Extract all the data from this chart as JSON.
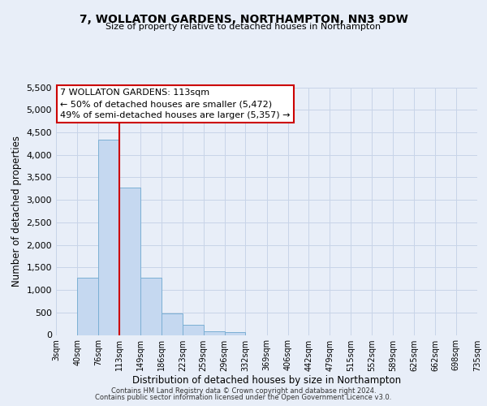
{
  "title": "7, WOLLATON GARDENS, NORTHAMPTON, NN3 9DW",
  "subtitle": "Size of property relative to detached houses in Northampton",
  "xlabel": "Distribution of detached houses by size in Northampton",
  "ylabel": "Number of detached properties",
  "bin_labels": [
    "3sqm",
    "40sqm",
    "76sqm",
    "113sqm",
    "149sqm",
    "186sqm",
    "223sqm",
    "259sqm",
    "296sqm",
    "332sqm",
    "369sqm",
    "406sqm",
    "442sqm",
    "479sqm",
    "515sqm",
    "552sqm",
    "589sqm",
    "625sqm",
    "662sqm",
    "698sqm",
    "735sqm"
  ],
  "bar_values": [
    0,
    1270,
    4330,
    3280,
    1270,
    480,
    230,
    90,
    60,
    0,
    0,
    0,
    0,
    0,
    0,
    0,
    0,
    0,
    0,
    0
  ],
  "bar_color": "#c5d8f0",
  "bar_edge_color": "#7bafd4",
  "vline_color": "#cc0000",
  "annotation_title": "7 WOLLATON GARDENS: 113sqm",
  "annotation_line1": "← 50% of detached houses are smaller (5,472)",
  "annotation_line2": "49% of semi-detached houses are larger (5,357) →",
  "annotation_box_color": "#ffffff",
  "annotation_box_edge": "#cc0000",
  "ylim": [
    0,
    5500
  ],
  "yticks": [
    0,
    500,
    1000,
    1500,
    2000,
    2500,
    3000,
    3500,
    4000,
    4500,
    5000,
    5500
  ],
  "grid_color": "#c8d4e8",
  "bg_color": "#e8eef8",
  "footer1": "Contains HM Land Registry data © Crown copyright and database right 2024.",
  "footer2": "Contains public sector information licensed under the Open Government Licence v3.0."
}
